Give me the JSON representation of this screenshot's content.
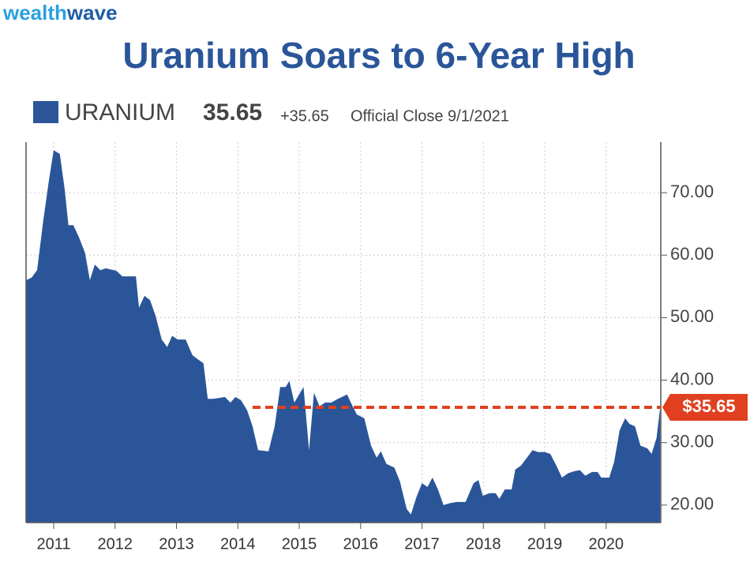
{
  "brand": [
    "wealth",
    "wave"
  ],
  "chart_data": {
    "type": "area",
    "title": "Uranium Soars to 6-Year High",
    "series": [
      {
        "name": "URANIUM",
        "color": "#2a5699",
        "x": [
          2010.55,
          2010.64,
          2010.73,
          2010.83,
          2010.92,
          2011.0,
          2011.1,
          2011.18,
          2011.24,
          2011.32,
          2011.41,
          2011.51,
          2011.59,
          2011.67,
          2011.76,
          2011.85,
          2012.02,
          2012.12,
          2012.25,
          2012.34,
          2012.39,
          2012.48,
          2012.57,
          2012.66,
          2012.76,
          2012.85,
          2012.93,
          2013.02,
          2013.15,
          2013.26,
          2013.34,
          2013.44,
          2013.51,
          2013.6,
          2013.79,
          2013.88,
          2013.96,
          2014.05,
          2014.15,
          2014.24,
          2014.33,
          2014.5,
          2014.6,
          2014.69,
          2014.78,
          2014.84,
          2014.92,
          2015.07,
          2015.16,
          2015.24,
          2015.33,
          2015.42,
          2015.52,
          2015.63,
          2015.78,
          2015.87,
          2015.94,
          2016.06,
          2016.17,
          2016.26,
          2016.33,
          2016.42,
          2016.55,
          2016.64,
          2016.75,
          2016.82,
          2016.91,
          2017.0,
          2017.09,
          2017.17,
          2017.26,
          2017.35,
          2017.45,
          2017.56,
          2017.71,
          2017.84,
          2017.92,
          2017.99,
          2018.1,
          2018.2,
          2018.26,
          2018.35,
          2018.46,
          2018.52,
          2018.61,
          2018.71,
          2018.8,
          2018.89,
          2019.0,
          2019.09,
          2019.19,
          2019.28,
          2019.38,
          2019.47,
          2019.57,
          2019.66,
          2019.77,
          2019.86,
          2019.92,
          2020.05,
          2020.13,
          2020.22,
          2020.31,
          2020.38,
          2020.47,
          2020.56,
          2020.67,
          2020.74,
          2020.82,
          2020.88
        ],
        "values": [
          56,
          56.4,
          57.6,
          65.5,
          71.8,
          76.8,
          76.2,
          70.5,
          64.8,
          64.8,
          62.9,
          60.4,
          56,
          58.5,
          57.6,
          57.9,
          57.5,
          56.6,
          56.6,
          56.6,
          51.6,
          53.5,
          52.8,
          50.3,
          46.5,
          45.3,
          47.1,
          46.5,
          46.5,
          44,
          43.4,
          42.7,
          37,
          37,
          37.3,
          36.4,
          37.3,
          36.8,
          35.2,
          32.6,
          28.8,
          28.6,
          32.6,
          38.9,
          38.9,
          39.9,
          36.4,
          38.9,
          28.8,
          38,
          35.8,
          36.4,
          36.4,
          37,
          37.7,
          35.8,
          34.5,
          33.9,
          29.5,
          27.6,
          28.6,
          26.6,
          26,
          23.8,
          19.4,
          18.5,
          21.3,
          23.5,
          22.9,
          24.4,
          22.5,
          20,
          20.3,
          20.5,
          20.5,
          23.5,
          24,
          21.5,
          21.9,
          21.9,
          21,
          22.5,
          22.5,
          25.7,
          26.3,
          27.6,
          28.8,
          28.5,
          28.5,
          28.2,
          26.3,
          24.4,
          25.1,
          25.4,
          25.6,
          24.7,
          25.3,
          25.3,
          24.4,
          24.4,
          26.9,
          32,
          33.9,
          33,
          32.6,
          29.5,
          29.1,
          28.2,
          30.7,
          35.65
        ]
      }
    ],
    "last_value": 35.65,
    "change": {
      "value": 35.65,
      "label": "+35.65"
    },
    "note": "Official Close 9/1/2021",
    "last_label": {
      "value": 35.65,
      "label": "$35.65"
    },
    "xlim": [
      2010.55,
      2020.89
    ],
    "xticks": [
      2011,
      2012,
      2013,
      2014,
      2015,
      2016,
      2017,
      2018,
      2019,
      2020
    ],
    "ylim": [
      17.2,
      78.1
    ],
    "yticks": [
      {
        "value": 20,
        "label": "20.00"
      },
      {
        "value": 30,
        "label": "30.00"
      },
      {
        "value": 40,
        "label": "40.00"
      },
      {
        "value": 50,
        "label": "50.00"
      },
      {
        "value": 60,
        "label": "60.00"
      },
      {
        "value": 70,
        "label": "70.00"
      }
    ],
    "grid": true
  }
}
